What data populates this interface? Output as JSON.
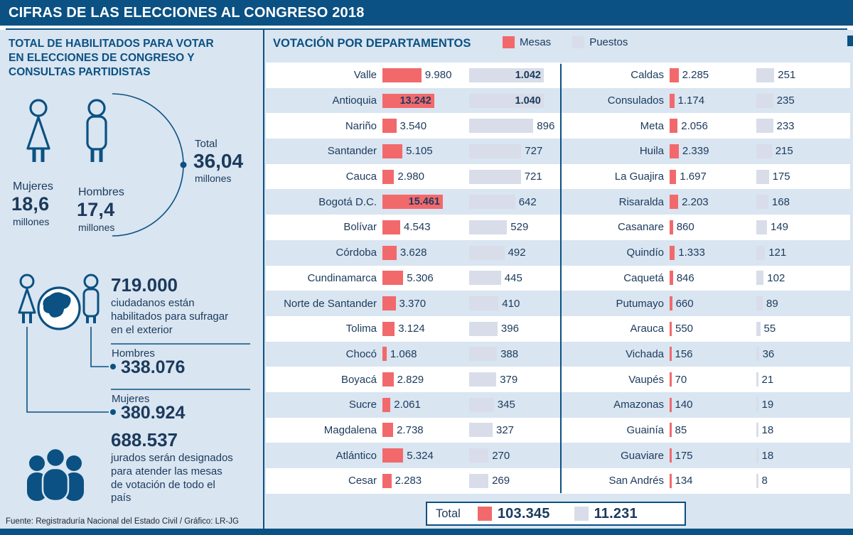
{
  "header": {
    "title": "CIFRAS DE LAS ELECCIONES AL CONGRESO 2018"
  },
  "left_panel": {
    "title": "TOTAL DE HABILITADOS PARA VOTAR EN ELECCIONES DE CONGRESO Y CONSULTAS PARTIDISTAS",
    "mujeres": {
      "label": "Mujeres",
      "value": "18,6",
      "unit": "millones"
    },
    "hombres": {
      "label": "Hombres",
      "value": "17,4",
      "unit": "millones"
    },
    "total": {
      "label": "Total",
      "value": "36,04",
      "unit": "millones"
    },
    "exterior": {
      "value": "719.000",
      "text": "ciudadanos están habilitados para sufragar en el exterior",
      "hombres_label": "Hombres",
      "hombres_value": "338.076",
      "mujeres_label": "Mujeres",
      "mujeres_value": "380.924"
    },
    "jurados": {
      "value": "688.537",
      "text": "jurados serán designados para atender las mesas de votación de todo el país"
    }
  },
  "footer": {
    "source": "Fuente: Registraduría Nacional del Estado Civil / Gráfico: LR-JG"
  },
  "colors": {
    "navy": "#0B5183",
    "ink": "#1B3A5C",
    "mesas": "#F2696C",
    "puestos": "#D8DDE9",
    "background": "#D9E5F1"
  },
  "chart_data": {
    "type": "bar",
    "orientation": "horizontal",
    "title": "VOTACIÓN POR DEPARTAMENTOS",
    "series_names": [
      "Mesas",
      "Puestos"
    ],
    "legend": [
      {
        "label": "Mesas",
        "color": "#F2696C"
      },
      {
        "label": "Puestos",
        "color": "#D8DDE9"
      }
    ],
    "columns": {
      "left": [
        {
          "name": "Valle",
          "mesas": 9980,
          "puestos": 1042
        },
        {
          "name": "Antioquia",
          "mesas": 13242,
          "puestos": 1040
        },
        {
          "name": "Nariño",
          "mesas": 3540,
          "puestos": 896
        },
        {
          "name": "Santander",
          "mesas": 5105,
          "puestos": 727
        },
        {
          "name": "Cauca",
          "mesas": 2980,
          "puestos": 721
        },
        {
          "name": "Bogotá D.C.",
          "mesas": 15461,
          "puestos": 642
        },
        {
          "name": "Bolívar",
          "mesas": 4543,
          "puestos": 529
        },
        {
          "name": "Córdoba",
          "mesas": 3628,
          "puestos": 492
        },
        {
          "name": "Cundinamarca",
          "mesas": 5306,
          "puestos": 445
        },
        {
          "name": "Norte de Santander",
          "mesas": 3370,
          "puestos": 410
        },
        {
          "name": "Tolima",
          "mesas": 3124,
          "puestos": 396
        },
        {
          "name": "Chocó",
          "mesas": 1068,
          "puestos": 388
        },
        {
          "name": "Boyacá",
          "mesas": 2829,
          "puestos": 379
        },
        {
          "name": "Sucre",
          "mesas": 2061,
          "puestos": 345
        },
        {
          "name": "Magdalena",
          "mesas": 2738,
          "puestos": 327
        },
        {
          "name": "Atlántico",
          "mesas": 5324,
          "puestos": 270
        },
        {
          "name": "Cesar",
          "mesas": 2283,
          "puestos": 269
        }
      ],
      "right": [
        {
          "name": "Caldas",
          "mesas": 2285,
          "puestos": 251
        },
        {
          "name": "Consulados",
          "mesas": 1174,
          "puestos": 235
        },
        {
          "name": "Meta",
          "mesas": 2056,
          "puestos": 233
        },
        {
          "name": "Huila",
          "mesas": 2339,
          "puestos": 215
        },
        {
          "name": "La Guajira",
          "mesas": 1697,
          "puestos": 175
        },
        {
          "name": "Risaralda",
          "mesas": 2203,
          "puestos": 168
        },
        {
          "name": "Casanare",
          "mesas": 860,
          "puestos": 149
        },
        {
          "name": "Quindío",
          "mesas": 1333,
          "puestos": 121
        },
        {
          "name": "Caquetá",
          "mesas": 846,
          "puestos": 102
        },
        {
          "name": "Putumayo",
          "mesas": 660,
          "puestos": 89
        },
        {
          "name": "Arauca",
          "mesas": 550,
          "puestos": 55
        },
        {
          "name": "Vichada",
          "mesas": 156,
          "puestos": 36
        },
        {
          "name": "Vaupés",
          "mesas": 70,
          "puestos": 21
        },
        {
          "name": "Amazonas",
          "mesas": 140,
          "puestos": 19
        },
        {
          "name": "Guainía",
          "mesas": 85,
          "puestos": 18
        },
        {
          "name": "Guaviare",
          "mesas": 175,
          "puestos": 18
        },
        {
          "name": "San Andrés",
          "mesas": 134,
          "puestos": 8
        }
      ]
    },
    "total": {
      "label": "Total",
      "mesas": 103345,
      "puestos": 11231
    }
  }
}
